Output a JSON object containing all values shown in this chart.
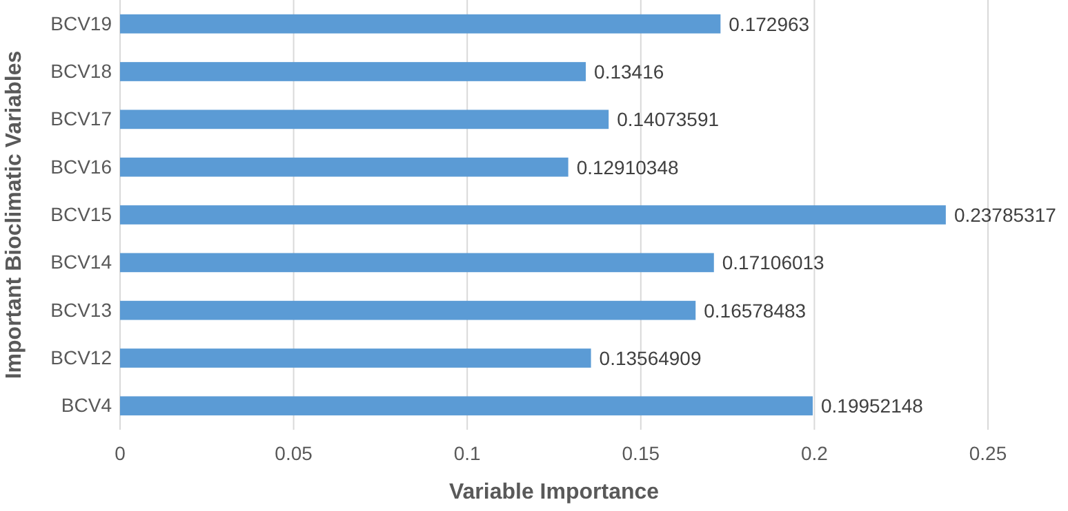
{
  "chart_data": {
    "type": "bar",
    "orientation": "horizontal",
    "xlabel": "Variable Importance",
    "ylabel": "Important Bioclimatic Variables",
    "categories": [
      "BCV19",
      "BCV18",
      "BCV17",
      "BCV16",
      "BCV15",
      "BCV14",
      "BCV13",
      "BCV12",
      "BCV4"
    ],
    "values": [
      0.172963,
      0.13416,
      0.14073591,
      0.12910348,
      0.23785317,
      0.17106013,
      0.16578483,
      0.13564909,
      0.19952148
    ],
    "color": "#5b9bd5",
    "xlim": [
      0,
      0.25
    ],
    "xticks": [
      0,
      0.05,
      0.1,
      0.15,
      0.2,
      0.25
    ],
    "grid": "x",
    "data_labels": true
  }
}
